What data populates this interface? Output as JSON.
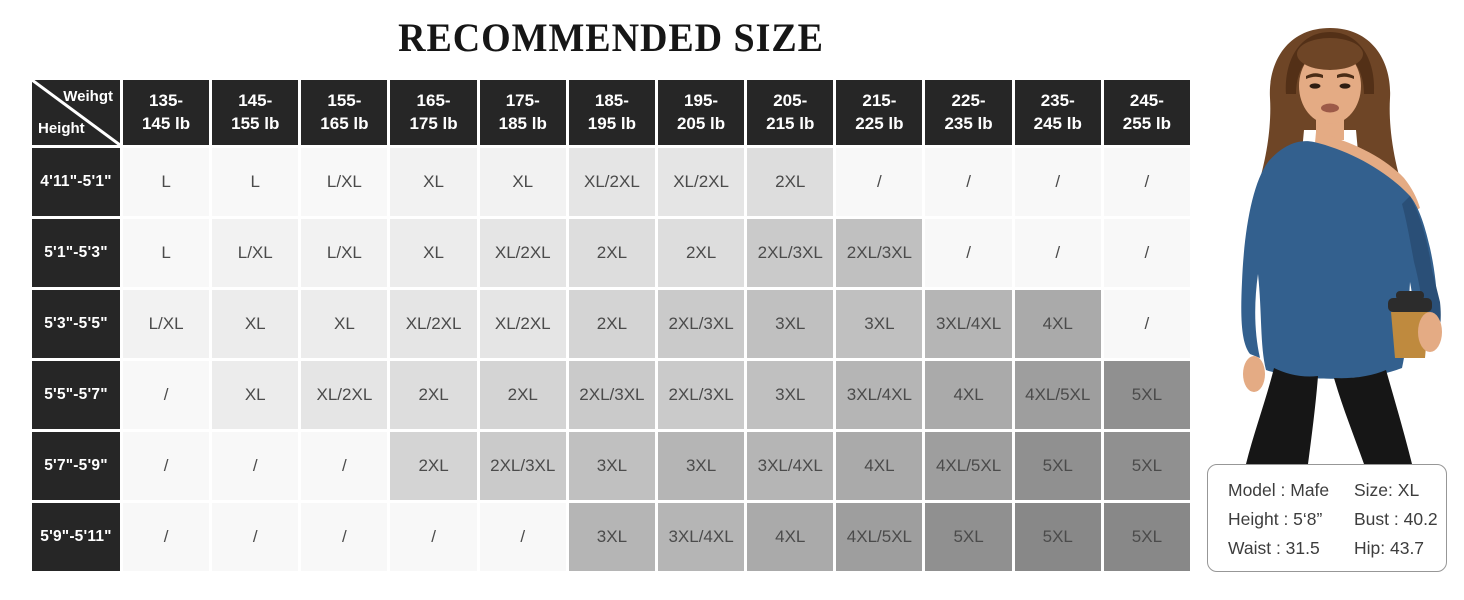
{
  "title": "RECOMMENDED SIZE",
  "chart_data": {
    "type": "table",
    "title": "RECOMMENDED SIZE",
    "corner": {
      "top_right": "Weihgt",
      "bottom_left": "Height"
    },
    "columns": [
      "135-\n145 lb",
      "145-\n155 lb",
      "155-\n165 lb",
      "165-\n175 lb",
      "175-\n185 lb",
      "185-\n195 lb",
      "195-\n205 lb",
      "205-\n215 lb",
      "215-\n225 lb",
      "225-\n235 lb",
      "235-\n245 lb",
      "245-\n255 lb"
    ],
    "rows": [
      {
        "height": "4'11\"-5'1\"",
        "cells": [
          {
            "v": "L",
            "s": 0
          },
          {
            "v": "L",
            "s": 0
          },
          {
            "v": "L/XL",
            "s": 0
          },
          {
            "v": "XL",
            "s": 1
          },
          {
            "v": "XL",
            "s": 1
          },
          {
            "v": "XL/2XL",
            "s": 3
          },
          {
            "v": "XL/2XL",
            "s": 3
          },
          {
            "v": "2XL",
            "s": 4
          },
          {
            "v": "/",
            "s": 0
          },
          {
            "v": "/",
            "s": 0
          },
          {
            "v": "/",
            "s": 0
          },
          {
            "v": "/",
            "s": 0
          }
        ]
      },
      {
        "height": "5'1\"-5'3\"",
        "cells": [
          {
            "v": "L",
            "s": 0
          },
          {
            "v": "L/XL",
            "s": 1
          },
          {
            "v": "L/XL",
            "s": 1
          },
          {
            "v": "XL",
            "s": 2
          },
          {
            "v": "XL/2XL",
            "s": 3
          },
          {
            "v": "2XL",
            "s": 4
          },
          {
            "v": "2XL",
            "s": 4
          },
          {
            "v": "2XL/3XL",
            "s": 6
          },
          {
            "v": "2XL/3XL",
            "s": 7
          },
          {
            "v": "/",
            "s": 0
          },
          {
            "v": "/",
            "s": 0
          },
          {
            "v": "/",
            "s": 0
          }
        ]
      },
      {
        "height": "5'3\"-5'5\"",
        "cells": [
          {
            "v": "L/XL",
            "s": 1
          },
          {
            "v": "XL",
            "s": 2
          },
          {
            "v": "XL",
            "s": 2
          },
          {
            "v": "XL/2XL",
            "s": 3
          },
          {
            "v": "XL/2XL",
            "s": 3
          },
          {
            "v": "2XL",
            "s": 5
          },
          {
            "v": "2XL/3XL",
            "s": 6
          },
          {
            "v": "3XL",
            "s": 7
          },
          {
            "v": "3XL",
            "s": 7
          },
          {
            "v": "3XL/4XL",
            "s": 8
          },
          {
            "v": "4XL",
            "s": 9
          },
          {
            "v": "/",
            "s": 0
          }
        ]
      },
      {
        "height": "5'5\"-5'7\"",
        "cells": [
          {
            "v": "/",
            "s": 0
          },
          {
            "v": "XL",
            "s": 2
          },
          {
            "v": "XL/2XL",
            "s": 3
          },
          {
            "v": "2XL",
            "s": 4
          },
          {
            "v": "2XL",
            "s": 5
          },
          {
            "v": "2XL/3XL",
            "s": 6
          },
          {
            "v": "2XL/3XL",
            "s": 6
          },
          {
            "v": "3XL",
            "s": 7
          },
          {
            "v": "3XL/4XL",
            "s": 8
          },
          {
            "v": "4XL",
            "s": 9
          },
          {
            "v": "4XL/5XL",
            "s": 10
          },
          {
            "v": "5XL",
            "s": 11
          }
        ]
      },
      {
        "height": "5'7\"-5'9\"",
        "cells": [
          {
            "v": "/",
            "s": 0
          },
          {
            "v": "/",
            "s": 0
          },
          {
            "v": "/",
            "s": 0
          },
          {
            "v": "2XL",
            "s": 5
          },
          {
            "v": "2XL/3XL",
            "s": 6
          },
          {
            "v": "3XL",
            "s": 7
          },
          {
            "v": "3XL",
            "s": 8
          },
          {
            "v": "3XL/4XL",
            "s": 8
          },
          {
            "v": "4XL",
            "s": 9
          },
          {
            "v": "4XL/5XL",
            "s": 10
          },
          {
            "v": "5XL",
            "s": 11
          },
          {
            "v": "5XL",
            "s": 11
          }
        ]
      },
      {
        "height": "5'9\"-5'11\"",
        "cells": [
          {
            "v": "/",
            "s": 0
          },
          {
            "v": "/",
            "s": 0
          },
          {
            "v": "/",
            "s": 0
          },
          {
            "v": "/",
            "s": 0
          },
          {
            "v": "/",
            "s": 0
          },
          {
            "v": "3XL",
            "s": 8
          },
          {
            "v": "3XL/4XL",
            "s": 8
          },
          {
            "v": "4XL",
            "s": 9
          },
          {
            "v": "4XL/5XL",
            "s": 10
          },
          {
            "v": "5XL",
            "s": 11
          },
          {
            "v": "5XL",
            "s": 12
          },
          {
            "v": "5XL",
            "s": 12
          }
        ]
      }
    ]
  },
  "colors": {
    "header_bg": "#262626",
    "cell_text": "#4b4b4b",
    "shades": [
      "#f8f8f8",
      "#f2f2f2",
      "#ececec",
      "#e5e5e5",
      "#dddddd",
      "#d4d4d4",
      "#cacaca",
      "#c0c0c0",
      "#b5b5b5",
      "#aaaaaa",
      "#9e9e9e",
      "#909090",
      "#888888"
    ],
    "top_blue": "#33608e",
    "top_blue_dark": "#2a4f77",
    "hair": "#6e4526",
    "hair_dark": "#533017",
    "skin": "#e4ab84",
    "leggings": "#161616",
    "cup": "#bf8a3e",
    "cup_lid": "#2c2c2c"
  },
  "model_info": {
    "left": [
      "Model :  Mafe",
      "Height :  5‘8”",
      "Waist : 31.5"
    ],
    "right": [
      "Size: XL",
      "Bust : 40.2",
      "Hip: 43.7"
    ]
  }
}
